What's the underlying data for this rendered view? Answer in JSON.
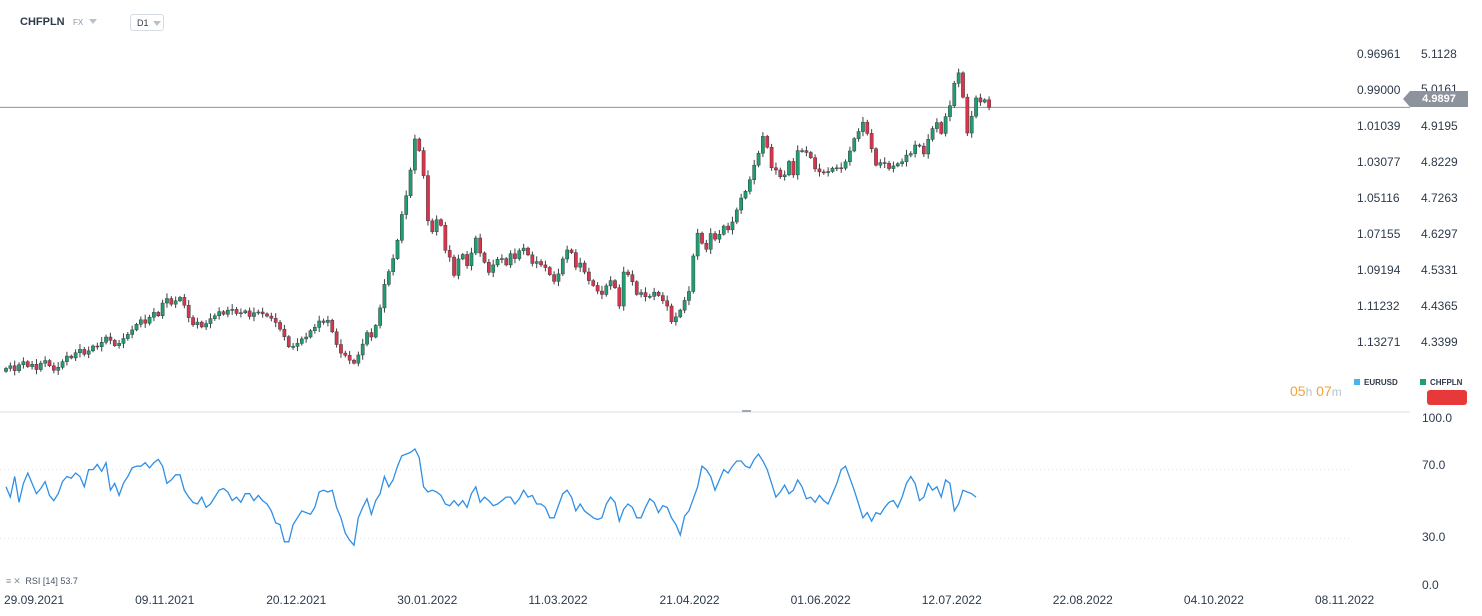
{
  "header": {
    "symbol": "CHFPLN",
    "market": "FX",
    "timeframe": "D1"
  },
  "price_tag": "4.9897",
  "timer": {
    "hours": "05",
    "h": "h",
    "minutes": "07",
    "m": "m"
  },
  "legend": [
    {
      "label": "EURUSD",
      "color": "#4cb3e8"
    },
    {
      "label": "CHFPLN",
      "color": "#1f9f6e"
    }
  ],
  "rsi_label": {
    "name": "RSI",
    "param": "[14]",
    "value": "53.7"
  },
  "colors": {
    "up": "#1f9f6e",
    "down": "#d9354a",
    "rsi": "#2f8fe6",
    "hline": "#8d939d"
  },
  "chart_data": [
    {
      "type": "candlestick",
      "series": [
        {
          "name": "CHFPLN"
        }
      ],
      "y_left_ticks": [
        "0.96961",
        "0.99000",
        "1.01039",
        "1.03077",
        "1.05116",
        "1.07155",
        "1.09194",
        "1.11232",
        "1.13271"
      ],
      "y_right_ticks": [
        "5.1128",
        "5.0161",
        "4.9195",
        "4.8229",
        "4.7263",
        "4.6297",
        "4.5331",
        "4.4365",
        "4.3399"
      ],
      "x_ticks": [
        "29.09.2021",
        "09.11.2021",
        "20.12.2021",
        "30.01.2022",
        "11.03.2022",
        "21.04.2022",
        "01.06.2022",
        "12.07.2022",
        "22.08.2022",
        "04.10.2022",
        "08.11.2022"
      ],
      "ylim": [
        4.26,
        5.17
      ],
      "horizontal_line": 4.9897,
      "last_price": 4.9897,
      "close": [
        4.291,
        4.298,
        4.285,
        4.301,
        4.309,
        4.296,
        4.302,
        4.288,
        4.305,
        4.312,
        4.298,
        4.286,
        4.294,
        4.309,
        4.324,
        4.319,
        4.333,
        4.342,
        4.329,
        4.338,
        4.351,
        4.349,
        4.361,
        4.375,
        4.366,
        4.352,
        4.358,
        4.371,
        4.382,
        4.394,
        4.409,
        4.421,
        4.412,
        4.428,
        4.441,
        4.432,
        4.466,
        4.478,
        4.463,
        4.472,
        4.481,
        4.46,
        4.427,
        4.408,
        4.415,
        4.402,
        4.411,
        4.424,
        4.432,
        4.443,
        4.436,
        4.447,
        4.449,
        4.438,
        4.44,
        4.445,
        4.43,
        4.44,
        4.442,
        4.437,
        4.431,
        4.425,
        4.414,
        4.396,
        4.376,
        4.349,
        4.35,
        4.358,
        4.37,
        4.375,
        4.392,
        4.401,
        4.418,
        4.414,
        4.42,
        4.389,
        4.355,
        4.332,
        4.326,
        4.313,
        4.305,
        4.327,
        4.356,
        4.387,
        4.375,
        4.406,
        4.453,
        4.516,
        4.55,
        4.585,
        4.634,
        4.703,
        4.753,
        4.822,
        4.905,
        4.874,
        4.807,
        4.686,
        4.657,
        4.689,
        4.674,
        4.607,
        4.589,
        4.54,
        4.584,
        4.596,
        4.566,
        4.6,
        4.64,
        4.6,
        4.575,
        4.548,
        4.568,
        4.583,
        4.585,
        4.568,
        4.598,
        4.585,
        4.606,
        4.613,
        4.595,
        4.572,
        4.577,
        4.568,
        4.561,
        4.542,
        4.524,
        4.544,
        4.584,
        4.608,
        4.601,
        4.562,
        4.573,
        4.549,
        4.526,
        4.513,
        4.498,
        4.489,
        4.512,
        4.526,
        4.507,
        4.458,
        4.549,
        4.542,
        4.523,
        4.489,
        4.494,
        4.483,
        4.484,
        4.495,
        4.486,
        4.472,
        4.458,
        4.416,
        4.429,
        4.447,
        4.473,
        4.497,
        4.592,
        4.653,
        4.626,
        4.61,
        4.652,
        4.637,
        4.65,
        4.672,
        4.662,
        4.683,
        4.715,
        4.747,
        4.765,
        4.796,
        4.835,
        4.867,
        4.912,
        4.883,
        4.828,
        4.822,
        4.804,
        4.809,
        4.845,
        4.809,
        4.874,
        4.874,
        4.869,
        4.855,
        4.825,
        4.817,
        4.815,
        4.818,
        4.827,
        4.828,
        4.827,
        4.844,
        4.873,
        4.906,
        4.925,
        4.95,
        4.92,
        4.879,
        4.835,
        4.842,
        4.84,
        4.826,
        4.833,
        4.839,
        4.844,
        4.862,
        4.866,
        4.889,
        4.886,
        4.865,
        4.904,
        4.933,
        4.949,
        4.92,
        4.965,
        4.994,
        5.054,
        5.082,
        5.017,
        4.921,
        4.966,
        5.015,
        5.004,
        5.01,
        4.99
      ]
    },
    {
      "type": "line",
      "series": [
        {
          "name": "RSI"
        }
      ],
      "y_ticks": [
        "100.0",
        "70.0",
        "30.0",
        "0.0"
      ],
      "ylim": [
        0,
        100
      ],
      "x_ticks": [
        "29.09.2021",
        "09.11.2021",
        "20.12.2021",
        "30.01.2022",
        "11.03.2022",
        "21.04.2022",
        "01.06.2022",
        "12.07.2022",
        "22.08.2022",
        "04.10.2022",
        "08.11.2022"
      ],
      "values": [
        60,
        54,
        66,
        51,
        62,
        68,
        62,
        56,
        59,
        63,
        55,
        52,
        56,
        63,
        66,
        65,
        68,
        66,
        60,
        70,
        70,
        73,
        69,
        74,
        58,
        62,
        55,
        62,
        66,
        71,
        72,
        72,
        74,
        71,
        74,
        76,
        72,
        62,
        64,
        67,
        67,
        58,
        54,
        51,
        50,
        54,
        48,
        50,
        54,
        58,
        59,
        57,
        52,
        54,
        51,
        56,
        56,
        52,
        55,
        52,
        50,
        46,
        39,
        38,
        28,
        28,
        38,
        42,
        46,
        45,
        44,
        48,
        57,
        58,
        57,
        58,
        48,
        42,
        33,
        29,
        26,
        42,
        48,
        53,
        44,
        52,
        56,
        66,
        60,
        64,
        72,
        78,
        79,
        80,
        82,
        77,
        60,
        57,
        58,
        57,
        55,
        50,
        49,
        52,
        49,
        52,
        48,
        56,
        60,
        51,
        54,
        52,
        49,
        50,
        52,
        54,
        54,
        50,
        53,
        58,
        54,
        55,
        50,
        50,
        48,
        42,
        42,
        49,
        56,
        58,
        54,
        46,
        50,
        46,
        44,
        42,
        41,
        42,
        50,
        54,
        51,
        40,
        47,
        50,
        48,
        42,
        42,
        48,
        53,
        51,
        45,
        49,
        48,
        42,
        38,
        32,
        43,
        46,
        53,
        60,
        72,
        70,
        66,
        58,
        64,
        70,
        68,
        72,
        75,
        75,
        72,
        71,
        76,
        79,
        75,
        70,
        62,
        54,
        57,
        61,
        56,
        58,
        64,
        60,
        53,
        54,
        51,
        55,
        52,
        50,
        56,
        62,
        70,
        72,
        65,
        58,
        50,
        42,
        45,
        40,
        45,
        44,
        48,
        51,
        52,
        48,
        54,
        62,
        66,
        62,
        52,
        54,
        62,
        58,
        60,
        54,
        64,
        62,
        46,
        50,
        58,
        57,
        56,
        54
      ]
    }
  ]
}
